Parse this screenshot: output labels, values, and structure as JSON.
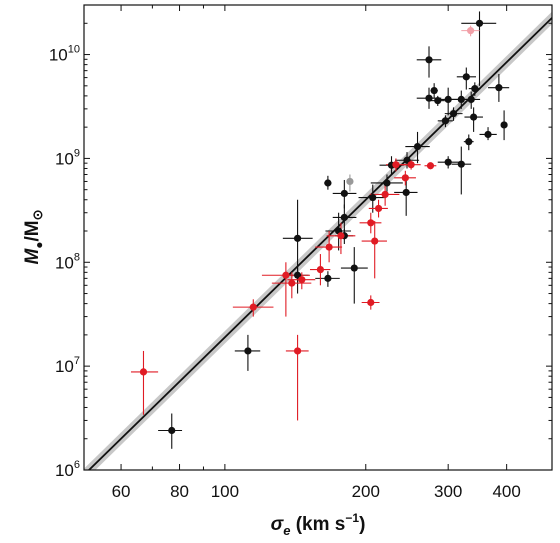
{
  "chart_data": {
    "type": "scatter",
    "title": "",
    "xlabel": {
      "sym": "σ",
      "sub": "e",
      "units": " (km s",
      "exp": "−1",
      "close": ")"
    },
    "ylabel": {
      "main": "M",
      "sub": "●",
      "slash": "/M",
      "odot": "⊙"
    },
    "x_scale": "log",
    "y_scale": "log",
    "xlim": [
      50,
      500
    ],
    "ylim": [
      1000000,
      30000000000
    ],
    "grid": false,
    "legend": "none",
    "x_ticks": [
      {
        "value": 60,
        "label": "60"
      },
      {
        "value": 80,
        "label": "80"
      },
      {
        "value": 100,
        "label": "100"
      },
      {
        "value": 200,
        "label": "200"
      },
      {
        "value": 300,
        "label": "300"
      },
      {
        "value": 400,
        "label": "400"
      }
    ],
    "y_ticks": [
      {
        "value": 1000000,
        "base": "10",
        "exp": "6"
      },
      {
        "value": 10000000,
        "base": "10",
        "exp": "7"
      },
      {
        "value": 100000000,
        "base": "10",
        "exp": "8"
      },
      {
        "value": 1000000000,
        "base": "10",
        "exp": "9"
      },
      {
        "value": 10000000000,
        "base": "10",
        "exp": "10"
      }
    ],
    "fit": {
      "slope": 4.4,
      "pivot_sigma": 200,
      "pivot_mass": 400000000,
      "band_dex": 0.06,
      "color": "#111111",
      "band_color": "#c8c8c8"
    },
    "colors": {
      "black": "#111111",
      "red": "#e01b24",
      "gray": "#999999",
      "pink": "#f2a0a8"
    },
    "series": [
      {
        "color_key": "black",
        "points": [
          {
            "x": 77,
            "y": 2400000,
            "xlo": 72,
            "xhi": 81,
            "ylo": 1600000,
            "yhi": 3500000
          },
          {
            "x": 112,
            "y": 14000000,
            "xlo": 105,
            "xhi": 119,
            "ylo": 9000000,
            "yhi": 20000000
          },
          {
            "x": 143,
            "y": 170000000,
            "xlo": 133,
            "xhi": 154,
            "ylo": 50000000,
            "yhi": 400000000
          },
          {
            "x": 143,
            "y": 75000000,
            "xlo": 135,
            "xhi": 151,
            "ylo": 62000000,
            "yhi": 90000000
          },
          {
            "x": 166,
            "y": 70000000,
            "xlo": 156,
            "xhi": 176,
            "ylo": 58000000,
            "yhi": 82000000
          },
          {
            "x": 166,
            "y": 580000000,
            "xlo": 163,
            "xhi": 169,
            "ylo": 500000000,
            "yhi": 680000000
          },
          {
            "x": 175,
            "y": 200000000,
            "xlo": 164,
            "xhi": 186,
            "ylo": 130000000,
            "yhi": 300000000
          },
          {
            "x": 180,
            "y": 270000000,
            "xlo": 170,
            "xhi": 191,
            "ylo": 200000000,
            "yhi": 360000000
          },
          {
            "x": 180,
            "y": 460000000,
            "xlo": 170,
            "xhi": 191,
            "ylo": 330000000,
            "yhi": 620000000
          },
          {
            "x": 180,
            "y": 180000000,
            "xlo": 172,
            "xhi": 188,
            "ylo": 150000000,
            "yhi": 210000000
          },
          {
            "x": 189,
            "y": 88000000,
            "xlo": 177,
            "xhi": 202,
            "ylo": 40000000,
            "yhi": 140000000
          },
          {
            "x": 207,
            "y": 420000000,
            "xlo": 193,
            "xhi": 221,
            "ylo": 300000000,
            "yhi": 560000000
          },
          {
            "x": 222,
            "y": 580000000,
            "xlo": 205,
            "xhi": 240,
            "ylo": 480000000,
            "yhi": 700000000
          },
          {
            "x": 227,
            "y": 860000000,
            "xlo": 214,
            "xhi": 241,
            "ylo": 700000000,
            "yhi": 1050000000
          },
          {
            "x": 244,
            "y": 470000000,
            "xlo": 230,
            "xhi": 258,
            "ylo": 280000000,
            "yhi": 650000000
          },
          {
            "x": 245,
            "y": 960000000,
            "xlo": 231,
            "xhi": 260,
            "ylo": 800000000,
            "yhi": 1150000000
          },
          {
            "x": 258,
            "y": 1300000000,
            "xlo": 243,
            "xhi": 274,
            "ylo": 900000000,
            "yhi": 1800000000
          },
          {
            "x": 273,
            "y": 3800000000,
            "xlo": 257,
            "xhi": 290,
            "ylo": 3000000000,
            "yhi": 4800000000
          },
          {
            "x": 273,
            "y": 8900000000,
            "xlo": 257,
            "xhi": 290,
            "ylo": 6000000000,
            "yhi": 12000000000
          },
          {
            "x": 280,
            "y": 4500000000,
            "xlo": 275,
            "xhi": 285,
            "ylo": 3800000000,
            "yhi": 5300000000
          },
          {
            "x": 285,
            "y": 3600000000,
            "xlo": 275,
            "xhi": 295,
            "ylo": 3200000000,
            "yhi": 4000000000
          },
          {
            "x": 296,
            "y": 2300000000,
            "xlo": 285,
            "xhi": 307,
            "ylo": 2000000000,
            "yhi": 2600000000
          },
          {
            "x": 300,
            "y": 3700000000,
            "xlo": 282,
            "xhi": 318,
            "ylo": 2600000000,
            "yhi": 4800000000
          },
          {
            "x": 300,
            "y": 920000000,
            "xlo": 285,
            "xhi": 316,
            "ylo": 800000000,
            "yhi": 1050000000
          },
          {
            "x": 308,
            "y": 2700000000,
            "xlo": 295,
            "xhi": 322,
            "ylo": 2300000000,
            "yhi": 3100000000
          },
          {
            "x": 320,
            "y": 3700000000,
            "xlo": 305,
            "xhi": 335,
            "ylo": 3000000000,
            "yhi": 4500000000
          },
          {
            "x": 320,
            "y": 880000000,
            "xlo": 305,
            "xhi": 336,
            "ylo": 450000000,
            "yhi": 1300000000
          },
          {
            "x": 328,
            "y": 6100000000,
            "xlo": 313,
            "xhi": 344,
            "ylo": 4600000000,
            "yhi": 7500000000
          },
          {
            "x": 332,
            "y": 1450000000,
            "xlo": 324,
            "xhi": 340,
            "ylo": 1200000000,
            "yhi": 1700000000
          },
          {
            "x": 336,
            "y": 3700000000,
            "xlo": 322,
            "xhi": 351,
            "ylo": 3000000000,
            "yhi": 4400000000
          },
          {
            "x": 340,
            "y": 2500000000,
            "xlo": 325,
            "xhi": 356,
            "ylo": 1800000000,
            "yhi": 3100000000
          },
          {
            "x": 342,
            "y": 4700000000,
            "xlo": 332,
            "xhi": 352,
            "ylo": 4000000000,
            "yhi": 5400000000
          },
          {
            "x": 350,
            "y": 20000000000,
            "xlo": 320,
            "xhi": 380,
            "ylo": 5000000000,
            "yhi": 26000000000
          },
          {
            "x": 365,
            "y": 1700000000,
            "xlo": 350,
            "xhi": 381,
            "ylo": 1500000000,
            "yhi": 2000000000
          },
          {
            "x": 385,
            "y": 4800000000,
            "xlo": 365,
            "xhi": 405,
            "ylo": 3500000000,
            "yhi": 6500000000
          },
          {
            "x": 395,
            "y": 2100000000,
            "xlo": 393,
            "xhi": 397,
            "ylo": 1500000000,
            "yhi": 2900000000
          }
        ]
      },
      {
        "color_key": "red",
        "points": [
          {
            "x": 67,
            "y": 8800000,
            "xlo": 63,
            "xhi": 72,
            "ylo": 3400000,
            "yhi": 14000000
          },
          {
            "x": 115,
            "y": 37000000,
            "xlo": 104,
            "xhi": 127,
            "ylo": 30000000,
            "yhi": 44000000
          },
          {
            "x": 135,
            "y": 75000000,
            "xlo": 120,
            "xhi": 152,
            "ylo": 30000000,
            "yhi": 100000000
          },
          {
            "x": 139,
            "y": 63000000,
            "xlo": 126,
            "xhi": 153,
            "ylo": 45000000,
            "yhi": 80000000
          },
          {
            "x": 143,
            "y": 14000000,
            "xlo": 135,
            "xhi": 151,
            "ylo": 3000000,
            "yhi": 20000000
          },
          {
            "x": 146,
            "y": 68000000,
            "xlo": 136,
            "xhi": 156,
            "ylo": 55000000,
            "yhi": 80000000
          },
          {
            "x": 160,
            "y": 85000000,
            "xlo": 152,
            "xhi": 168,
            "ylo": 60000000,
            "yhi": 120000000
          },
          {
            "x": 167,
            "y": 140000000,
            "xlo": 156,
            "xhi": 178,
            "ylo": 100000000,
            "yhi": 200000000
          },
          {
            "x": 177,
            "y": 180000000,
            "xlo": 165,
            "xhi": 190,
            "ylo": 120000000,
            "yhi": 240000000
          },
          {
            "x": 205,
            "y": 41000000,
            "xlo": 196,
            "xhi": 214,
            "ylo": 35000000,
            "yhi": 48000000
          },
          {
            "x": 205,
            "y": 240000000,
            "xlo": 194,
            "xhi": 216,
            "ylo": 190000000,
            "yhi": 300000000
          },
          {
            "x": 209,
            "y": 160000000,
            "xlo": 196,
            "xhi": 222,
            "ylo": 70000000,
            "yhi": 250000000
          },
          {
            "x": 213,
            "y": 330000000,
            "xlo": 203,
            "xhi": 223,
            "ylo": 270000000,
            "yhi": 400000000
          },
          {
            "x": 220,
            "y": 450000000,
            "xlo": 204,
            "xhi": 236,
            "ylo": 350000000,
            "yhi": 550000000
          },
          {
            "x": 232,
            "y": 870000000,
            "xlo": 221,
            "xhi": 244,
            "ylo": 750000000,
            "yhi": 1000000000
          },
          {
            "x": 243,
            "y": 650000000,
            "xlo": 230,
            "xhi": 256,
            "ylo": 550000000,
            "yhi": 760000000
          },
          {
            "x": 250,
            "y": 870000000,
            "xlo": 238,
            "xhi": 262,
            "ylo": 780000000,
            "yhi": 960000000
          },
          {
            "x": 275,
            "y": 850000000,
            "xlo": 267,
            "xhi": 283,
            "ylo": 790000000,
            "yhi": 910000000
          }
        ]
      },
      {
        "color_key": "gray",
        "points": [
          {
            "x": 185,
            "y": 600000000,
            "xlo": 182,
            "xhi": 188,
            "ylo": 480000000,
            "yhi": 700000000
          }
        ]
      },
      {
        "color_key": "pink",
        "points": [
          {
            "x": 335,
            "y": 17000000000,
            "xlo": 320,
            "xhi": 350,
            "ylo": 15000000000,
            "yhi": 19000000000
          }
        ]
      }
    ]
  }
}
